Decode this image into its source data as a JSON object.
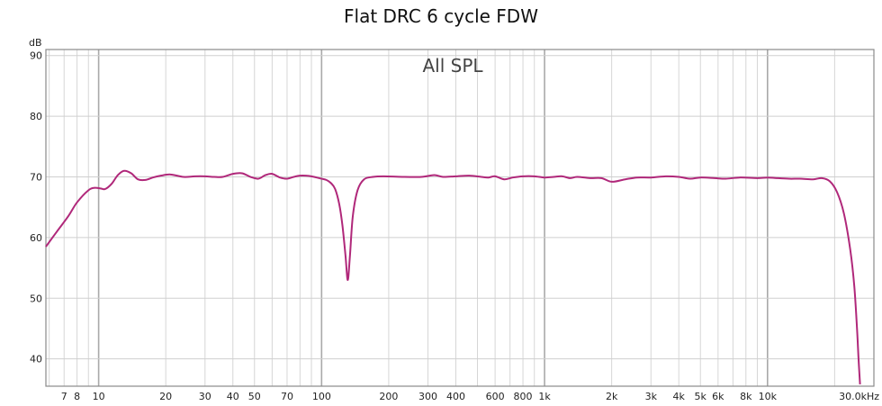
{
  "chart_data": {
    "type": "line",
    "title": "Flat DRC 6 cycle FDW",
    "subtitle": "All SPL",
    "ylabel": "dB",
    "xscale": "log",
    "xlim": [
      5.8,
      30000
    ],
    "ylim": [
      35.5,
      91
    ],
    "grid": true,
    "yticks": [
      {
        "value": 40,
        "label": "40"
      },
      {
        "value": 50,
        "label": "50"
      },
      {
        "value": 60,
        "label": "60"
      },
      {
        "value": 70,
        "label": "70"
      },
      {
        "value": 80,
        "label": "80"
      },
      {
        "value": 90,
        "label": "90"
      }
    ],
    "xticks": [
      {
        "value": 7,
        "label": "7"
      },
      {
        "value": 8,
        "label": "8"
      },
      {
        "value": 10,
        "label": "10"
      },
      {
        "value": 20,
        "label": "20"
      },
      {
        "value": 30,
        "label": "30"
      },
      {
        "value": 40,
        "label": "40"
      },
      {
        "value": 50,
        "label": "50"
      },
      {
        "value": 70,
        "label": "70"
      },
      {
        "value": 100,
        "label": "100"
      },
      {
        "value": 200,
        "label": "200"
      },
      {
        "value": 300,
        "label": "300"
      },
      {
        "value": 400,
        "label": "400"
      },
      {
        "value": 600,
        "label": "600"
      },
      {
        "value": 800,
        "label": "800"
      },
      {
        "value": 1000,
        "label": "1k"
      },
      {
        "value": 2000,
        "label": "2k"
      },
      {
        "value": 3000,
        "label": "3k"
      },
      {
        "value": 4000,
        "label": "4k"
      },
      {
        "value": 5000,
        "label": "5k"
      },
      {
        "value": 6000,
        "label": "6k"
      },
      {
        "value": 8000,
        "label": "8k"
      },
      {
        "value": 10000,
        "label": "10k"
      },
      {
        "value": 30000,
        "label": "30.0kHz"
      }
    ],
    "series": [
      {
        "color": "#b0287a",
        "x": [
          5.8,
          6.5,
          7.3,
          8,
          9,
          9.6,
          10.2,
          10.7,
          11.4,
          12.2,
          13,
          14,
          15,
          16.2,
          17.5,
          19,
          21,
          24,
          27,
          30,
          33,
          36,
          40,
          44,
          48,
          52,
          56,
          60,
          65,
          70,
          75,
          80,
          85,
          90,
          95,
          100,
          105,
          110,
          115,
          120,
          124,
          128,
          131,
          134,
          138,
          145,
          155,
          170,
          190,
          230,
          280,
          320,
          350,
          400,
          460,
          520,
          560,
          600,
          660,
          720,
          800,
          900,
          1000,
          1100,
          1200,
          1300,
          1400,
          1600,
          1800,
          2000,
          2300,
          2600,
          3000,
          3500,
          4000,
          4500,
          5000,
          5800,
          6500,
          7500,
          9000,
          10000,
          11000,
          12500,
          14000,
          16000,
          17500,
          19000,
          20500,
          22000,
          23500,
          24500,
          25200,
          25600,
          26000
        ],
        "y": [
          58.5,
          61,
          63.5,
          65.8,
          67.8,
          68.2,
          68.1,
          68,
          68.8,
          70.3,
          71,
          70.6,
          69.6,
          69.5,
          69.9,
          70.2,
          70.4,
          70.0,
          70.1,
          70.1,
          70.0,
          70.0,
          70.5,
          70.6,
          70.0,
          69.7,
          70.3,
          70.5,
          69.9,
          69.7,
          70.0,
          70.2,
          70.2,
          70.1,
          69.9,
          69.7,
          69.5,
          69.0,
          68.0,
          65.5,
          62,
          57,
          53.0,
          57,
          63.5,
          67.8,
          69.6,
          70.0,
          70.1,
          70.0,
          70.0,
          70.3,
          70.0,
          70.1,
          70.2,
          70.0,
          69.9,
          70.1,
          69.6,
          69.9,
          70.1,
          70.1,
          69.9,
          70.0,
          70.1,
          69.8,
          70.0,
          69.8,
          69.8,
          69.2,
          69.6,
          69.9,
          69.9,
          70.1,
          70.0,
          69.7,
          69.9,
          69.8,
          69.7,
          69.9,
          69.8,
          69.9,
          69.8,
          69.7,
          69.7,
          69.6,
          69.8,
          69.3,
          67.5,
          64,
          58,
          52,
          45,
          40,
          35.8
        ]
      }
    ]
  }
}
